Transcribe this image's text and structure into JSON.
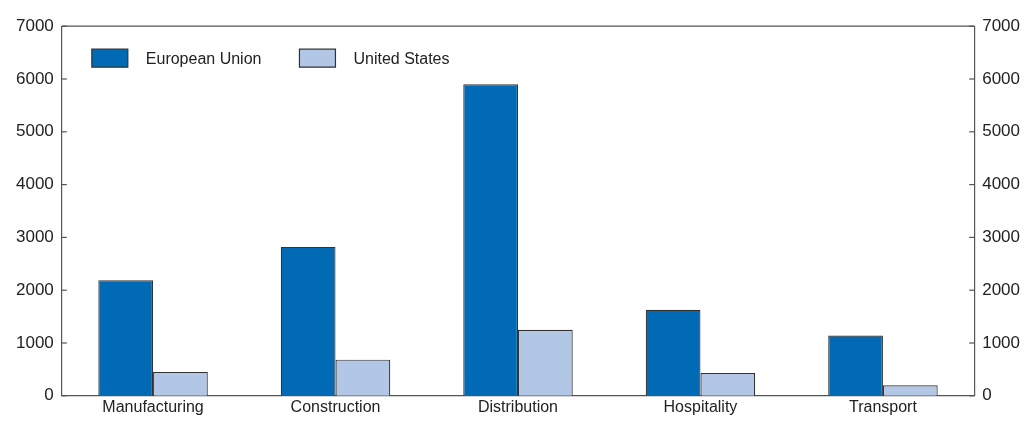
{
  "chart_data": {
    "type": "bar",
    "categories": [
      "Manufacturing",
      "Construction",
      "Distribution",
      "Hospitality",
      "Transport"
    ],
    "series": [
      {
        "name": "European Union",
        "color": "#006ab4",
        "values": [
          2190,
          2820,
          5900,
          1630,
          1140
        ]
      },
      {
        "name": "United States",
        "color": "#b2c6e6",
        "values": [
          450,
          685,
          1250,
          430,
          200
        ]
      }
    ],
    "ylim": [
      0,
      7000
    ],
    "yticks": [
      0,
      1000,
      2000,
      3000,
      4000,
      5000,
      6000,
      7000
    ],
    "y2lim": [
      0,
      7000
    ],
    "y2ticks": [
      0,
      1000,
      2000,
      3000,
      4000,
      5000,
      6000,
      7000
    ],
    "grid": false,
    "legend": "top left"
  }
}
